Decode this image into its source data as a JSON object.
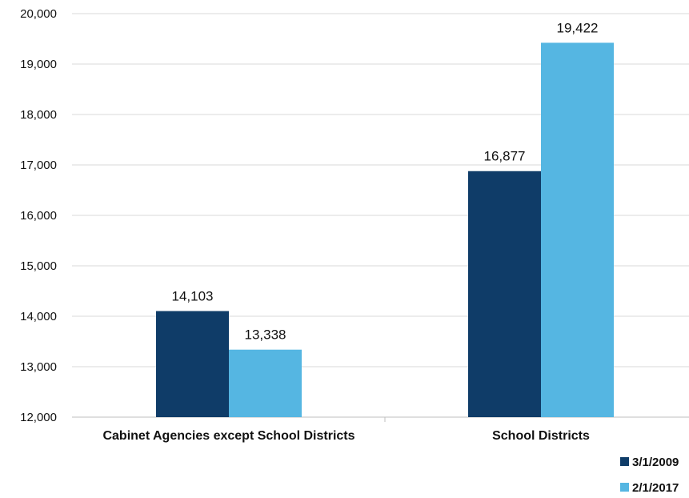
{
  "chart_data": {
    "type": "bar",
    "categories": [
      "Cabinet Agencies except School Districts",
      "School Districts"
    ],
    "series": [
      {
        "name": "3/1/2009",
        "values": [
          14103,
          16877
        ],
        "color": "#0f3c68"
      },
      {
        "name": "2/1/2017",
        "values": [
          13338,
          19422
        ],
        "color": "#55b6e2"
      }
    ],
    "data_labels": [
      [
        "14,103",
        "16,877"
      ],
      [
        "13,338",
        "19,422"
      ]
    ],
    "ylim": [
      12000,
      20000
    ],
    "yticks": [
      12000,
      13000,
      14000,
      15000,
      16000,
      17000,
      18000,
      19000,
      20000
    ],
    "ytick_labels": [
      "12,000",
      "13,000",
      "14,000",
      "15,000",
      "16,000",
      "17,000",
      "18,000",
      "19,000",
      "20,000"
    ],
    "grid": true,
    "legend_position": "bottom-right",
    "title": "",
    "xlabel": "",
    "ylabel": ""
  }
}
